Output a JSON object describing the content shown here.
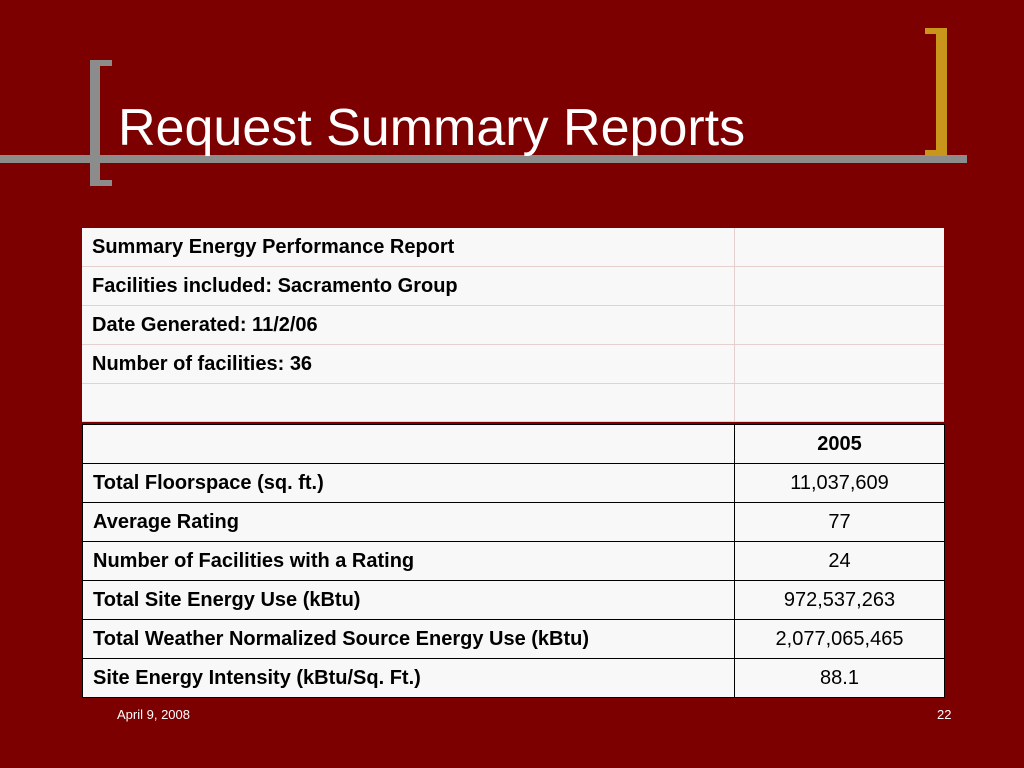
{
  "slide": {
    "title": "Request Summary Reports",
    "footer_date": "April 9, 2008",
    "page_number": "22"
  },
  "colors": {
    "background": "#7d0000",
    "left_bracket": "#8c8c8c",
    "right_bracket": "#c9951b",
    "rule": "#8c8c8c"
  },
  "report_header": {
    "rows": [
      "Summary Energy Performance Report",
      "Facilities included: Sacramento Group",
      "Date Generated: 11/2/06",
      "Number of facilities: 36",
      ""
    ]
  },
  "report_table": {
    "column_header": "2005",
    "rows": [
      {
        "label": "Total Floorspace (sq. ft.)",
        "value": "11,037,609"
      },
      {
        "label": "Average Rating",
        "value": "77"
      },
      {
        "label": "Number of Facilities with a Rating",
        "value": "24"
      },
      {
        "label": "Total Site Energy Use (kBtu)",
        "value": "972,537,263"
      },
      {
        "label": "Total Weather Normalized Source Energy Use (kBtu)",
        "value": "2,077,065,465"
      },
      {
        "label": "Site Energy Intensity (kBtu/Sq. Ft.)",
        "value": "88.1"
      }
    ]
  }
}
